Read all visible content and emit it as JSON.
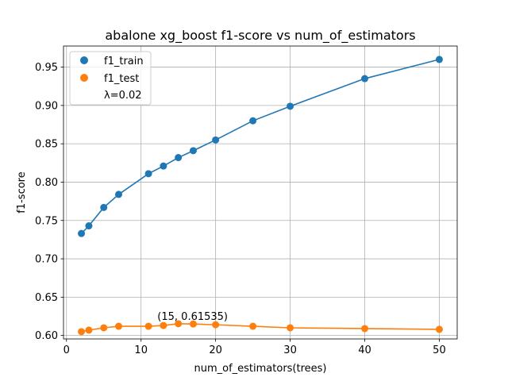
{
  "chart_data": {
    "type": "line",
    "title": "abalone xg_boost f1-score vs num_of_estimators",
    "xlabel": "num_of_estimators(trees)",
    "ylabel": "f1-score",
    "xlim": [
      -0.4,
      52.4
    ],
    "ylim": [
      0.5955,
      0.9775
    ],
    "x_ticks": [
      0,
      10,
      20,
      30,
      40,
      50
    ],
    "y_ticks": [
      0.6,
      0.65,
      0.7,
      0.75,
      0.8,
      0.85,
      0.9,
      0.95
    ],
    "grid": true,
    "legend_position": "top-left",
    "legend_note": "λ=0.02",
    "x": [
      2,
      3,
      5,
      7,
      11,
      13,
      15,
      17,
      20,
      25,
      30,
      40,
      50
    ],
    "series": [
      {
        "name": "f1_train",
        "color": "#1f77b4",
        "values": [
          0.733,
          0.743,
          0.767,
          0.784,
          0.811,
          0.821,
          0.832,
          0.841,
          0.855,
          0.88,
          0.899,
          0.935,
          0.96
        ]
      },
      {
        "name": "f1_test",
        "color": "#ff7f0e",
        "values": [
          0.605,
          0.607,
          0.61,
          0.612,
          0.612,
          0.613,
          0.61535,
          0.615,
          0.614,
          0.612,
          0.61,
          0.609,
          0.608
        ]
      }
    ],
    "annotation": {
      "text": "(15, 0.61535)",
      "x": 15,
      "y": 0.61535
    }
  }
}
